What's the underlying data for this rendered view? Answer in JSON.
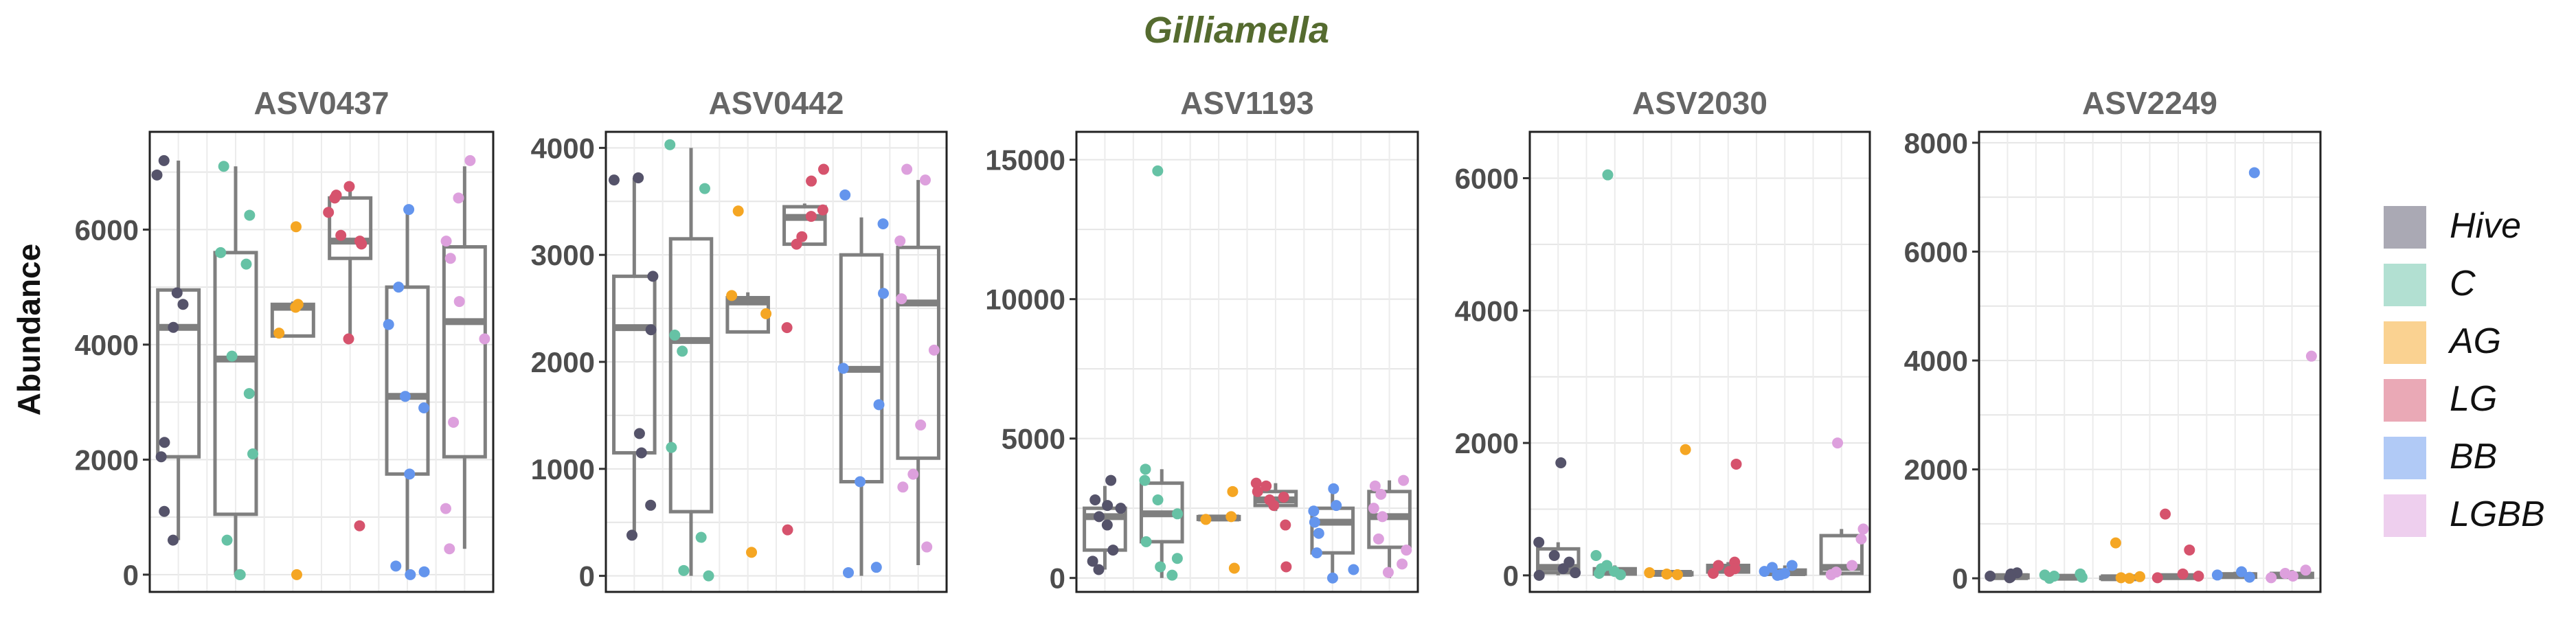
{
  "chart_data": {
    "type": "boxplot",
    "title": "Gilliamella",
    "ylabel": "Abundance",
    "groups": [
      "Hive",
      "C",
      "AG",
      "LG",
      "BB",
      "LGBB"
    ],
    "colors": {
      "title": "#556B2F",
      "strip": "#666666",
      "box": "#7F7F7F",
      "Hive": "#55536A",
      "C": "#66C2A5",
      "AG": "#F5A623",
      "LG": "#D6536D",
      "BB": "#6495ED",
      "LGBB": "#DDA0DD"
    },
    "panels": [
      {
        "name": "ASV0437",
        "ylim": [
          -300,
          7700
        ],
        "yticks": [
          0,
          2000,
          4000,
          6000
        ],
        "groups": {
          "Hive": {
            "min": 600,
            "q1": 2050,
            "median": 4300,
            "q3": 4950,
            "max": 7200,
            "points": [
              7200,
              6950,
              4900,
              4700,
              4300,
              2300,
              2050,
              1100,
              600
            ]
          },
          "C": {
            "min": 0,
            "q1": 1050,
            "median": 3750,
            "q3": 5600,
            "max": 7100,
            "points": [
              7100,
              6250,
              5600,
              5400,
              3800,
              3150,
              2100,
              600,
              0,
              0
            ]
          },
          "AG": {
            "min": 4150,
            "q1": 4150,
            "median": 4650,
            "q3": 4700,
            "max": 4750,
            "points": [
              6050,
              4700,
              4650,
              4200,
              0
            ]
          },
          "LG": {
            "min": 4100,
            "q1": 5500,
            "median": 5800,
            "q3": 6550,
            "max": 6750,
            "points": [
              6750,
              6600,
              6550,
              6300,
              5900,
              5800,
              5750,
              4100,
              850
            ]
          },
          "BB": {
            "min": 0,
            "q1": 1750,
            "median": 3100,
            "q3": 5000,
            "max": 6350,
            "points": [
              6350,
              5000,
              4350,
              3100,
              2900,
              1750,
              150,
              50,
              0
            ]
          },
          "LGBB": {
            "min": 450,
            "q1": 2050,
            "median": 4400,
            "q3": 5700,
            "max": 7100,
            "points": [
              7200,
              6550,
              5800,
              5500,
              4750,
              4100,
              2650,
              1150,
              450
            ]
          }
        }
      },
      {
        "name": "ASV0442",
        "ylim": [
          -150,
          4150
        ],
        "yticks": [
          0,
          1000,
          2000,
          3000,
          4000
        ],
        "groups": {
          "Hive": {
            "min": 400,
            "q1": 1150,
            "median": 2320,
            "q3": 2800,
            "max": 3720,
            "points": [
              3720,
              3700,
              2800,
              2300,
              1330,
              1150,
              660,
              380
            ]
          },
          "C": {
            "min": 0,
            "q1": 600,
            "median": 2200,
            "q3": 3150,
            "max": 4000,
            "points": [
              4030,
              3620,
              2250,
              2100,
              1200,
              360,
              50,
              0
            ]
          },
          "AG": {
            "min": 2280,
            "q1": 2280,
            "median": 2560,
            "q3": 2600,
            "max": 2650,
            "points": [
              3410,
              2620,
              2450,
              220
            ]
          },
          "LG": {
            "min": 3100,
            "q1": 3100,
            "median": 3350,
            "q3": 3450,
            "max": 3480,
            "points": [
              3800,
              3690,
              3420,
              3360,
              3170,
              3100,
              2320,
              430
            ]
          },
          "BB": {
            "min": 0,
            "q1": 880,
            "median": 1930,
            "q3": 3000,
            "max": 3350,
            "points": [
              3560,
              3290,
              2640,
              1940,
              1600,
              880,
              80,
              30
            ]
          },
          "LGBB": {
            "min": 100,
            "q1": 1100,
            "median": 2550,
            "q3": 3070,
            "max": 3700,
            "points": [
              3800,
              3700,
              3130,
              2590,
              2110,
              1410,
              950,
              830,
              270
            ]
          }
        }
      },
      {
        "name": "ASV1193",
        "ylim": [
          -500,
          16000
        ],
        "yticks": [
          0,
          5000,
          10000,
          15000
        ],
        "groups": {
          "Hive": {
            "min": 300,
            "q1": 1000,
            "median": 2200,
            "q3": 2500,
            "max": 3300,
            "points": [
              3500,
              2800,
              2600,
              2500,
              2200,
              1900,
              1000,
              600,
              300
            ]
          },
          "C": {
            "min": 0,
            "q1": 1300,
            "median": 2300,
            "q3": 3400,
            "max": 3900,
            "points": [
              14600,
              3900,
              3500,
              2800,
              2300,
              1300,
              700,
              400,
              100
            ]
          },
          "AG": {
            "min": 2100,
            "q1": 2100,
            "median": 2150,
            "q3": 2200,
            "max": 2200,
            "points": [
              3100,
              2200,
              2100,
              350
            ]
          },
          "LG": {
            "min": 2400,
            "q1": 2600,
            "median": 2800,
            "q3": 3100,
            "max": 3400,
            "points": [
              3400,
              3300,
              3100,
              2900,
              2800,
              2600,
              1900,
              400
            ]
          },
          "BB": {
            "min": 0,
            "q1": 900,
            "median": 2000,
            "q3": 2500,
            "max": 3200,
            "points": [
              3200,
              2600,
              2400,
              2000,
              1600,
              900,
              300,
              0
            ]
          },
          "LGBB": {
            "min": 0,
            "q1": 1100,
            "median": 2200,
            "q3": 3100,
            "max": 3500,
            "points": [
              3500,
              3300,
              3000,
              2500,
              2200,
              1400,
              1000,
              500,
              200
            ]
          }
        }
      },
      {
        "name": "ASV2030",
        "ylim": [
          -250,
          6700
        ],
        "yticks": [
          0,
          2000,
          4000,
          6000
        ],
        "groups": {
          "Hive": {
            "min": 0,
            "q1": 40,
            "median": 120,
            "q3": 400,
            "max": 500,
            "points": [
              1700,
              500,
              300,
              200,
              100,
              40,
              0
            ]
          },
          "C": {
            "min": 0,
            "q1": 20,
            "median": 60,
            "q3": 100,
            "max": 150,
            "points": [
              6050,
              300,
              150,
              100,
              60,
              30,
              10
            ]
          },
          "AG": {
            "min": 0,
            "q1": 10,
            "median": 30,
            "q3": 40,
            "max": 50,
            "points": [
              1900,
              40,
              20,
              10
            ]
          },
          "LG": {
            "min": 20,
            "q1": 50,
            "median": 100,
            "q3": 150,
            "max": 200,
            "points": [
              1680,
              200,
              150,
              100,
              60,
              30
            ]
          },
          "BB": {
            "min": 0,
            "q1": 20,
            "median": 40,
            "q3": 80,
            "max": 150,
            "points": [
              150,
              120,
              60,
              30,
              10,
              0
            ]
          },
          "LGBB": {
            "min": 0,
            "q1": 30,
            "median": 120,
            "q3": 600,
            "max": 700,
            "points": [
              2000,
              700,
              550,
              150,
              50,
              10
            ]
          }
        }
      },
      {
        "name": "ASV2249",
        "ylim": [
          -250,
          8200
        ],
        "yticks": [
          0,
          2000,
          4000,
          6000,
          8000
        ],
        "groups": {
          "Hive": {
            "min": 0,
            "q1": 10,
            "median": 30,
            "q3": 60,
            "max": 100,
            "points": [
              100,
              80,
              40,
              20,
              10
            ]
          },
          "C": {
            "min": 0,
            "q1": 5,
            "median": 20,
            "q3": 40,
            "max": 60,
            "points": [
              80,
              60,
              40,
              20,
              0
            ]
          },
          "AG": {
            "min": 0,
            "q1": 5,
            "median": 10,
            "q3": 20,
            "max": 30,
            "points": [
              650,
              30,
              10,
              0
            ]
          },
          "LG": {
            "min": 0,
            "q1": 10,
            "median": 30,
            "q3": 60,
            "max": 80,
            "points": [
              1180,
              520,
              80,
              40,
              10
            ]
          },
          "BB": {
            "min": 0,
            "q1": 20,
            "median": 50,
            "q3": 80,
            "max": 120,
            "points": [
              7450,
              120,
              60,
              20
            ]
          },
          "LGBB": {
            "min": 0,
            "q1": 20,
            "median": 50,
            "q3": 90,
            "max": 150,
            "points": [
              4080,
              150,
              90,
              40,
              10
            ]
          }
        }
      }
    ],
    "legend": {
      "placement": "right",
      "entries": [
        "Hive",
        "C",
        "AG",
        "LG",
        "BB",
        "LGBB"
      ]
    },
    "grid": true
  }
}
